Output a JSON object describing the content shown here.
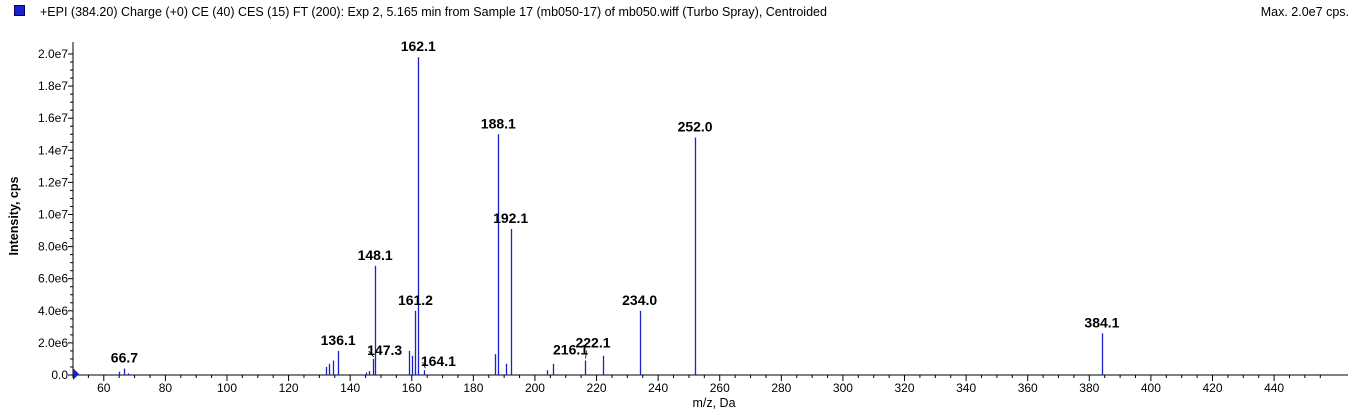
{
  "header": {
    "title": "+EPI (384.20) Charge (+0) CE (40) CES (15) FT (200): Exp 2, 5.165 min from Sample 17 (mb050-17) of mb050.wiff (Turbo Spray), Centroided",
    "max_label": "Max. 2.0e7 cps.",
    "series_color": "#1a22c8"
  },
  "chart_data": {
    "type": "bar",
    "xlabel": "m/z, Da",
    "ylabel": "Intensity, cps",
    "xlim": [
      50,
      464
    ],
    "ylim": [
      0,
      20000000
    ],
    "xticks": [
      60,
      80,
      100,
      120,
      140,
      160,
      180,
      200,
      220,
      240,
      260,
      280,
      300,
      320,
      340,
      360,
      380,
      400,
      420,
      440
    ],
    "xtick_labels": [
      "60",
      "80",
      "100",
      "120",
      "140",
      "160",
      "180",
      "200",
      "220",
      "240",
      "260",
      "280",
      "300",
      "320",
      "340",
      "360",
      "380",
      "400",
      "420",
      "440"
    ],
    "yticks": [
      0,
      2000000,
      4000000,
      6000000,
      8000000,
      10000000,
      12000000,
      14000000,
      16000000,
      18000000,
      20000000
    ],
    "ytick_labels": [
      "0.0",
      "2.0e6",
      "4.0e6",
      "6.0e6",
      "8.0e6",
      "1.0e7",
      "1.2e7",
      "1.4e7",
      "1.6e7",
      "1.8e7",
      "2.0e7"
    ],
    "grid": false,
    "peaks": [
      {
        "mz": 65.0,
        "intensity": 200000
      },
      {
        "mz": 66.7,
        "intensity": 400000
      },
      {
        "mz": 68.0,
        "intensity": 100000
      },
      {
        "mz": 132.0,
        "intensity": 500000
      },
      {
        "mz": 133.0,
        "intensity": 700000
      },
      {
        "mz": 134.5,
        "intensity": 900000
      },
      {
        "mz": 136.1,
        "intensity": 1500000
      },
      {
        "mz": 145.0,
        "intensity": 150000
      },
      {
        "mz": 146.0,
        "intensity": 250000
      },
      {
        "mz": 147.3,
        "intensity": 1000000
      },
      {
        "mz": 148.1,
        "intensity": 6800000
      },
      {
        "mz": 159.0,
        "intensity": 1500000
      },
      {
        "mz": 160.0,
        "intensity": 1200000
      },
      {
        "mz": 161.2,
        "intensity": 4000000
      },
      {
        "mz": 162.1,
        "intensity": 19800000
      },
      {
        "mz": 164.1,
        "intensity": 300000
      },
      {
        "mz": 187.0,
        "intensity": 1300000
      },
      {
        "mz": 188.1,
        "intensity": 15000000
      },
      {
        "mz": 190.5,
        "intensity": 700000
      },
      {
        "mz": 192.1,
        "intensity": 9100000
      },
      {
        "mz": 204.0,
        "intensity": 300000
      },
      {
        "mz": 206.0,
        "intensity": 700000
      },
      {
        "mz": 216.1,
        "intensity": 900000
      },
      {
        "mz": 222.1,
        "intensity": 1200000
      },
      {
        "mz": 234.0,
        "intensity": 4000000
      },
      {
        "mz": 252.0,
        "intensity": 14800000
      },
      {
        "mz": 384.1,
        "intensity": 2600000
      }
    ],
    "annotations": [
      {
        "text": "66.7",
        "mz": 66.7,
        "intensity": 400000
      },
      {
        "text": "136.1",
        "mz": 136.1,
        "intensity": 1500000
      },
      {
        "text": "147.3",
        "mz": 147.3,
        "intensity": 1000000
      },
      {
        "text": "148.1",
        "mz": 148.1,
        "intensity": 6800000
      },
      {
        "text": "161.2",
        "mz": 161.2,
        "intensity": 4000000
      },
      {
        "text": "162.1",
        "mz": 162.1,
        "intensity": 19800000
      },
      {
        "text": "164.1",
        "mz": 164.1,
        "intensity": 300000
      },
      {
        "text": "188.1",
        "mz": 188.1,
        "intensity": 15000000
      },
      {
        "text": "192.1",
        "mz": 192.1,
        "intensity": 9100000
      },
      {
        "text": "216.1",
        "mz": 216.1,
        "intensity": 900000
      },
      {
        "text": "222.1",
        "mz": 222.1,
        "intensity": 1200000
      },
      {
        "text": "234.0",
        "mz": 234.0,
        "intensity": 4000000
      },
      {
        "text": "252.0",
        "mz": 252.0,
        "intensity": 14800000
      },
      {
        "text": "384.1",
        "mz": 384.1,
        "intensity": 2600000
      }
    ]
  }
}
